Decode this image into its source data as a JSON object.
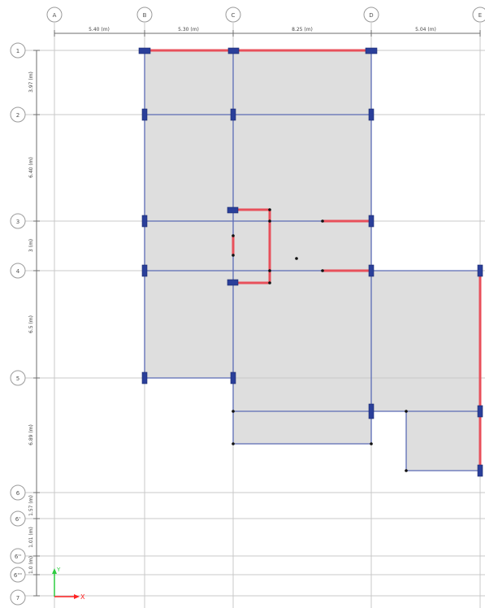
{
  "grid": {
    "x_axes": [
      "A",
      "B",
      "C",
      "D",
      "E"
    ],
    "y_axes": [
      "1",
      "2",
      "3",
      "4",
      "5",
      "6",
      "6'",
      "6''",
      "6'''",
      "7"
    ],
    "x_spacings": [
      "5.40 (m)",
      "5.30 (m)",
      "8.25 (m)",
      "5.04 (m)"
    ],
    "y_spacings": [
      "3.97 (m)",
      "6.40 (m)",
      "3 (m)",
      "6.5 (m)",
      "6.89 (m)",
      "1.57 (m)",
      "1.01 (m)",
      "1.0 (m)",
      ""
    ]
  },
  "axis_indicator": {
    "x_label": "X",
    "y_label": "Y"
  },
  "colors": {
    "slab": "#dedede",
    "beam": "#5b6bb5",
    "wall": "#e8505b",
    "column": "#2a3f9a"
  }
}
